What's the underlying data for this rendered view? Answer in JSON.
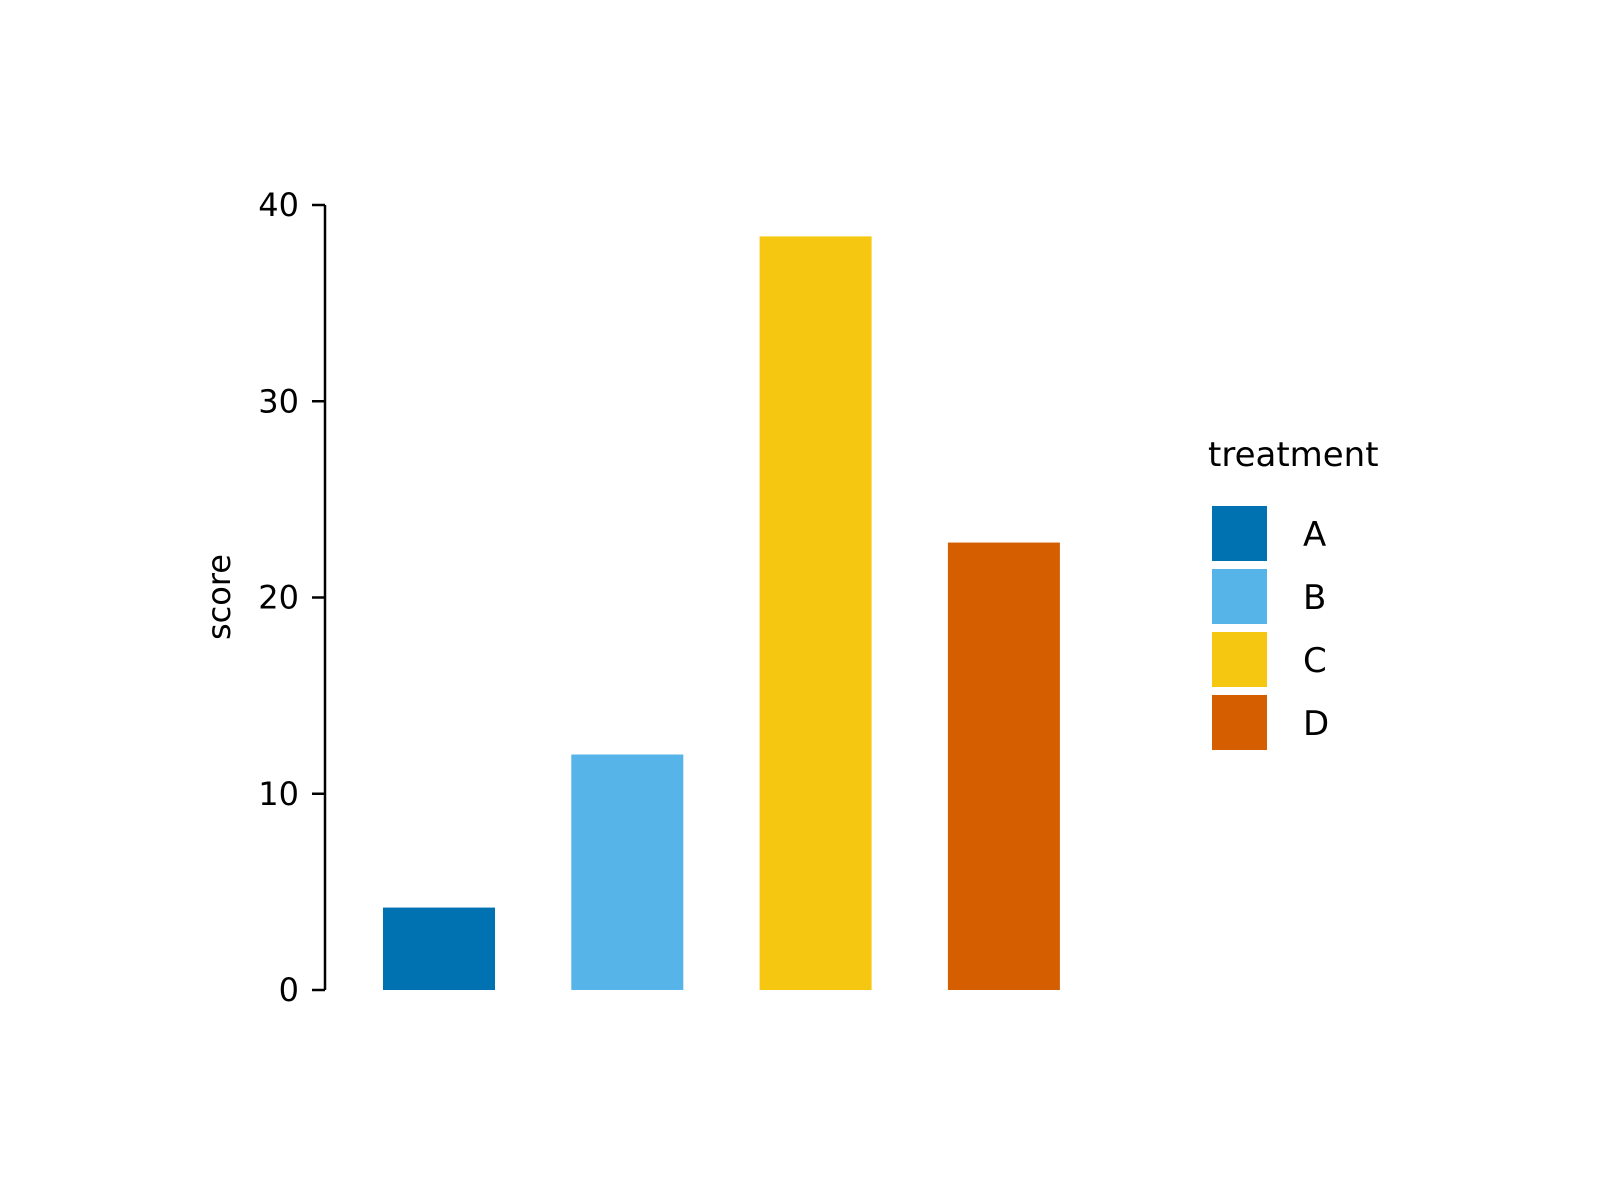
{
  "chart_data": {
    "type": "bar",
    "categories": [
      "A",
      "B",
      "C",
      "D"
    ],
    "values": [
      4.2,
      12,
      38.4,
      22.8
    ],
    "title": "",
    "xlabel": "",
    "ylabel": "score",
    "ylim": [
      0,
      40
    ],
    "yticks": [
      0,
      10,
      20,
      30,
      40
    ],
    "ytick_labels": [
      "0",
      "10",
      "20",
      "30",
      "40"
    ],
    "grid": false,
    "legend": {
      "title": "treatment",
      "placement": "right",
      "entries": [
        "A",
        "B",
        "C",
        "D"
      ]
    },
    "colors": [
      "#0072B2",
      "#56B4E9",
      "#F5C710",
      "#D55E00"
    ]
  }
}
